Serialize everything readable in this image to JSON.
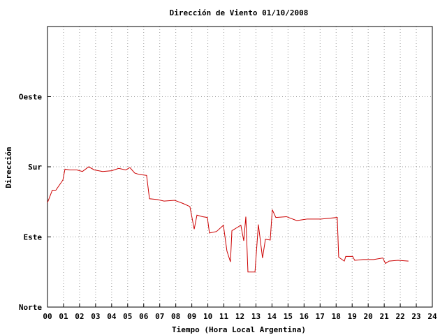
{
  "chart_data": {
    "type": "line",
    "title": "Dirección de Viento 01/10/2008",
    "xlabel": "Tiempo (Hora Local Argentina)",
    "ylabel": "Dirección",
    "grid": true,
    "xlim": [
      0,
      24
    ],
    "xticks": [
      {
        "value": 0,
        "label": "00"
      },
      {
        "value": 1,
        "label": "01"
      },
      {
        "value": 2,
        "label": "02"
      },
      {
        "value": 3,
        "label": "03"
      },
      {
        "value": 4,
        "label": "04"
      },
      {
        "value": 5,
        "label": "05"
      },
      {
        "value": 6,
        "label": "06"
      },
      {
        "value": 7,
        "label": "07"
      },
      {
        "value": 8,
        "label": "08"
      },
      {
        "value": 9,
        "label": "09"
      },
      10,
      11,
      12,
      13,
      14,
      15,
      16,
      17,
      18,
      19,
      20,
      21,
      22,
      23,
      24
    ],
    "ylim": [
      0,
      360
    ],
    "yticks": [
      {
        "value": 0,
        "label": "Norte"
      },
      {
        "value": 90,
        "label": "Este"
      },
      {
        "value": 180,
        "label": "Sur"
      },
      {
        "value": 270,
        "label": "Oeste"
      }
    ],
    "series": [
      {
        "color": "#cc0000",
        "x": [
          0,
          0.3,
          0.52,
          0.96,
          1.09,
          1.39,
          1.83,
          2.18,
          2.57,
          2.92,
          3.44,
          4.0,
          4.44,
          4.88,
          5.14,
          5.44,
          5.75,
          6.18,
          6.36,
          6.84,
          7.27,
          7.93,
          8.45,
          8.88,
          9.15,
          9.32,
          9.67,
          9.97,
          10.1,
          10.54,
          10.97,
          11.19,
          11.41,
          11.5,
          12.06,
          12.24,
          12.37,
          12.5,
          12.94,
          13.15,
          13.41,
          13.59,
          13.89,
          14.02,
          14.24,
          14.9,
          15.55,
          16.2,
          17.07,
          18.07,
          18.16,
          18.51,
          18.6,
          19.03,
          19.16,
          19.69,
          20.34,
          20.91,
          21.08,
          21.3,
          21.86,
          22.51
        ],
        "values": [
          134,
          150,
          150,
          163,
          177,
          176,
          176,
          174,
          180,
          176,
          174,
          175,
          178,
          176,
          179,
          172,
          170,
          169,
          139,
          138,
          136,
          137,
          133,
          129,
          100,
          118,
          116,
          115,
          95,
          97,
          105,
          72,
          58,
          98,
          105,
          85,
          116,
          45,
          45,
          106,
          63,
          87,
          86,
          125,
          115,
          116,
          111,
          113,
          113,
          115,
          64,
          59,
          65,
          65,
          60,
          61,
          61,
          63,
          56,
          59,
          60,
          59
        ]
      }
    ]
  }
}
